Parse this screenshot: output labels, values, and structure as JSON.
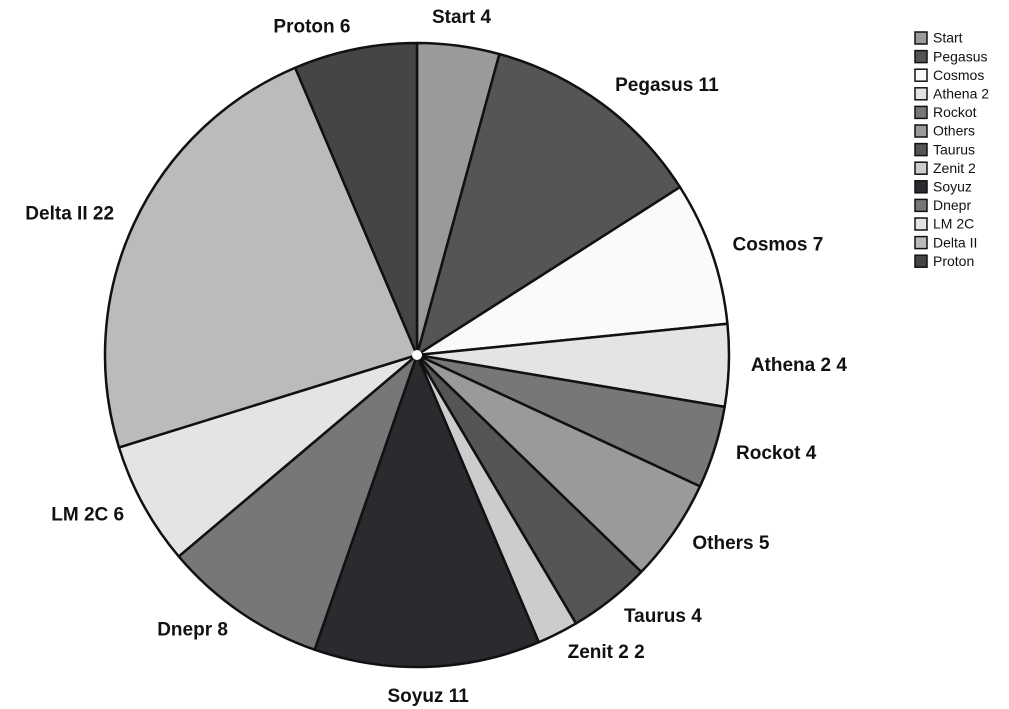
{
  "chart_data": {
    "type": "pie",
    "categories": [
      "Start",
      "Pegasus",
      "Cosmos",
      "Athena 2",
      "Rockot",
      "Others",
      "Taurus",
      "Zenit 2",
      "Soyuz",
      "Dnepr",
      "LM 2C",
      "Delta II",
      "Proton"
    ],
    "values": [
      4,
      11,
      7,
      4,
      4,
      5,
      4,
      2,
      11,
      8,
      6,
      22,
      6
    ],
    "colors": [
      "#9a9a9a",
      "#555555",
      "#fafafa",
      "#e4e4e4",
      "#777777",
      "#9a9a9a",
      "#555555",
      "#cccccc",
      "#2b2b2f",
      "#777777",
      "#e4e4e4",
      "#bbbbbb",
      "#454545"
    ],
    "legend": "top-right"
  }
}
